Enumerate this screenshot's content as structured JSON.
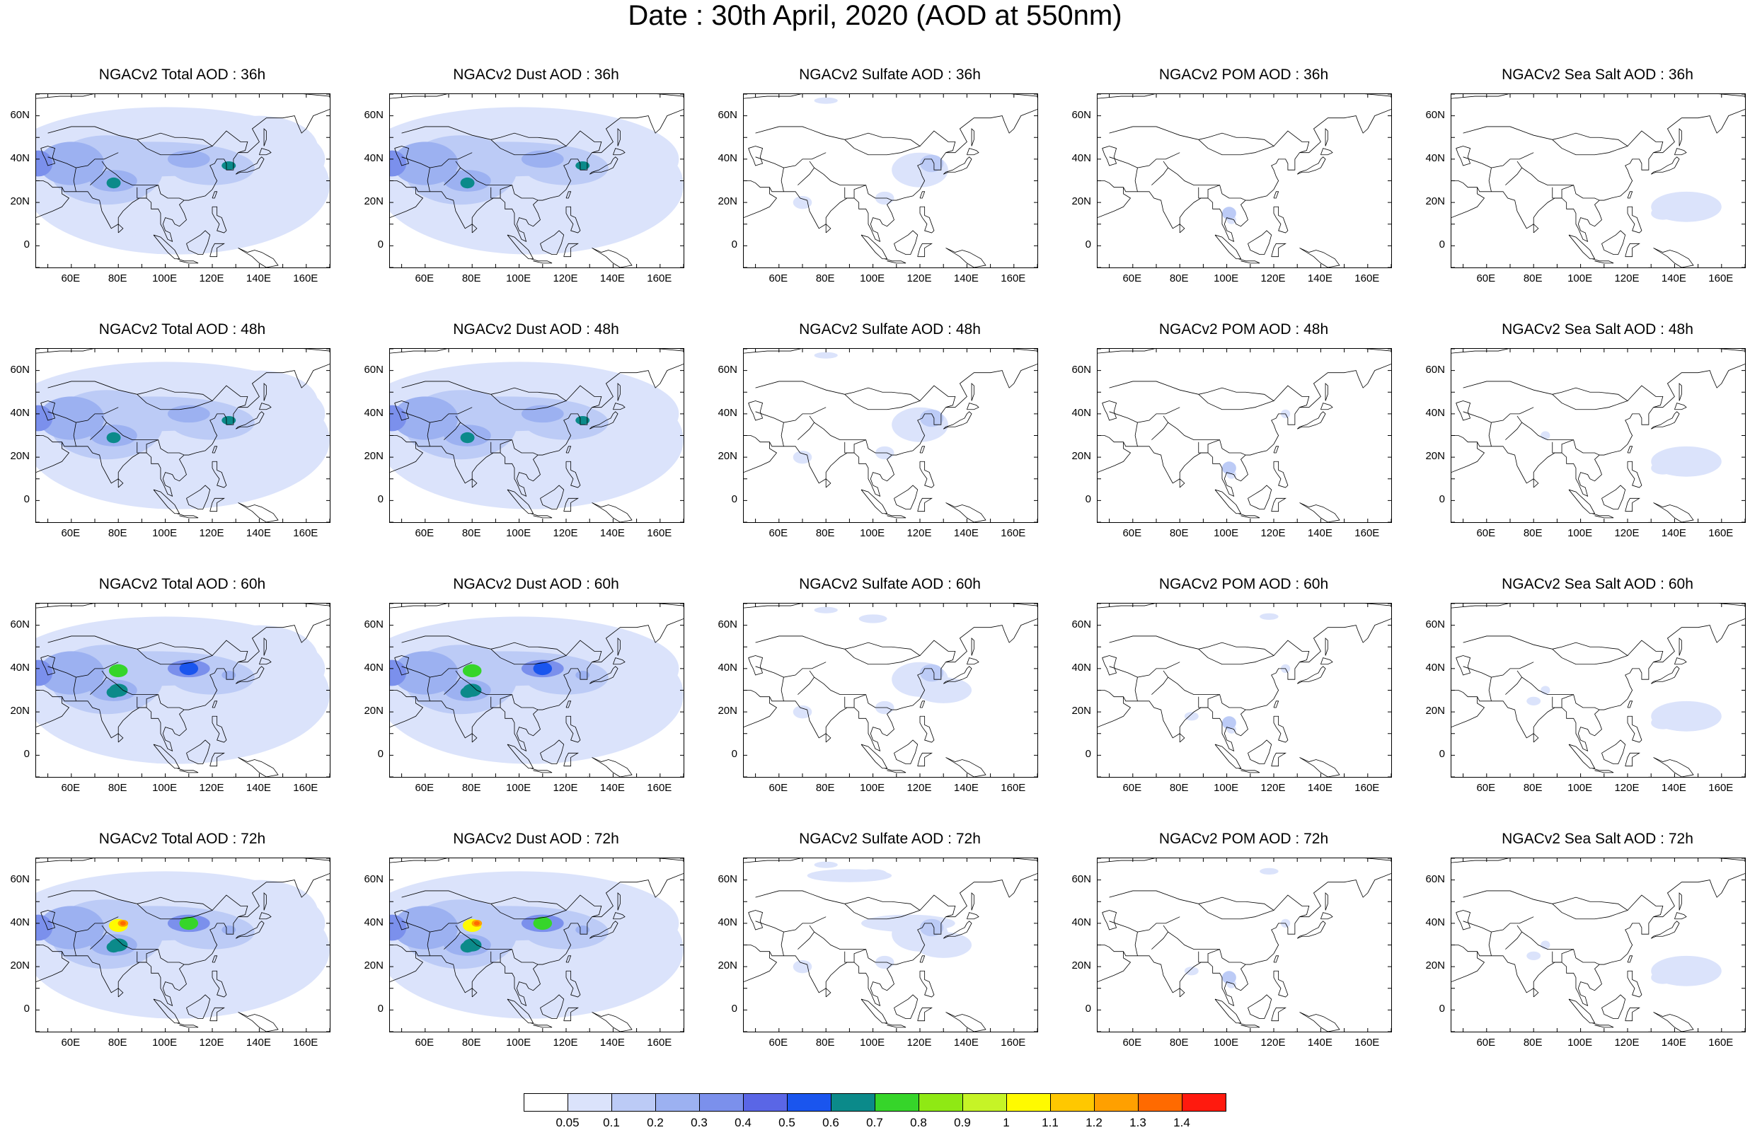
{
  "title": "Date : 30th April, 2020 (AOD at 550nm)",
  "lat_ticks": [
    "60N",
    "40N",
    "20N",
    "0"
  ],
  "lon_ticks": [
    "60E",
    "80E",
    "100E",
    "120E",
    "140E",
    "160E"
  ],
  "panels": [
    [
      {
        "title": "NGACv2 Total AOD : 36h",
        "species": "total"
      },
      {
        "title": "NGACv2 Dust AOD : 36h",
        "species": "dust"
      },
      {
        "title": "NGACv2 Sulfate AOD : 36h",
        "species": "sulfate"
      },
      {
        "title": "NGACv2 POM AOD : 36h",
        "species": "pom"
      },
      {
        "title": "NGACv2 Sea Salt AOD : 36h",
        "species": "seasalt"
      }
    ],
    [
      {
        "title": "NGACv2 Total AOD : 48h",
        "species": "total"
      },
      {
        "title": "NGACv2 Dust AOD : 48h",
        "species": "dust"
      },
      {
        "title": "NGACv2 Sulfate AOD : 48h",
        "species": "sulfate"
      },
      {
        "title": "NGACv2 POM AOD : 48h",
        "species": "pom"
      },
      {
        "title": "NGACv2 Sea Salt AOD : 48h",
        "species": "seasalt"
      }
    ],
    [
      {
        "title": "NGACv2 Total AOD : 60h",
        "species": "total"
      },
      {
        "title": "NGACv2 Dust AOD : 60h",
        "species": "dust"
      },
      {
        "title": "NGACv2 Sulfate AOD : 60h",
        "species": "sulfate"
      },
      {
        "title": "NGACv2 POM AOD : 60h",
        "species": "pom"
      },
      {
        "title": "NGACv2 Sea Salt AOD : 60h",
        "species": "seasalt"
      }
    ],
    [
      {
        "title": "NGACv2 Total AOD : 72h",
        "species": "total"
      },
      {
        "title": "NGACv2 Dust AOD : 72h",
        "species": "dust"
      },
      {
        "title": "NGACv2 Sulfate AOD : 72h",
        "species": "sulfate"
      },
      {
        "title": "NGACv2 POM AOD : 72h",
        "species": "pom"
      },
      {
        "title": "NGACv2 Sea Salt  AOD : 72h",
        "species": "seasalt"
      }
    ]
  ],
  "colorbar": {
    "labels": [
      "0.05",
      "0.1",
      "0.2",
      "0.3",
      "0.4",
      "0.5",
      "0.6",
      "0.7",
      "0.8",
      "0.9",
      "1",
      "1.1",
      "1.2",
      "1.3",
      "1.4"
    ],
    "colors": [
      "#ffffff",
      "#dbe3fb",
      "#bccbf6",
      "#9cb1f1",
      "#7b90ec",
      "#5a66e6",
      "#1a55ee",
      "#0b8a8a",
      "#36d52a",
      "#8fe914",
      "#c6f426",
      "#fffa00",
      "#ffc800",
      "#ffa000",
      "#ff6a00",
      "#ff1a0e"
    ]
  }
}
